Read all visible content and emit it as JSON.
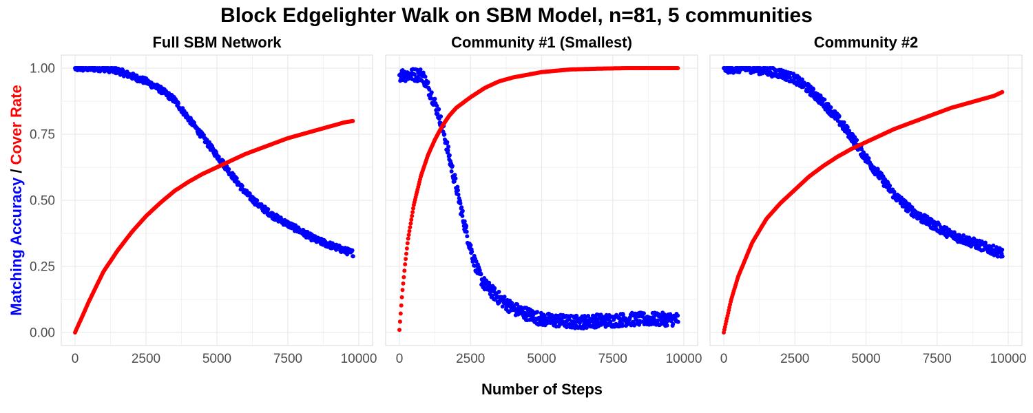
{
  "title": "Block Edgelighter Walk on SBM Model, n=81, 5 communities",
  "xlabel": "Number of Steps",
  "ylabel": {
    "part1": "Matching Accuracy",
    "sep": " / ",
    "part2": "Cover Rate"
  },
  "colors": {
    "accuracy": "#0000ff",
    "cover": "#ff0000",
    "panel_bg": "#ffffff",
    "grid": "#ebebeb",
    "border": "#d9d9d9"
  },
  "chart_data": [
    {
      "type": "scatter",
      "title": "Full SBM Network",
      "xlim": [
        0,
        10000
      ],
      "ylim": [
        0,
        1
      ],
      "x_ticks": [
        0,
        2500,
        5000,
        7500,
        10000
      ],
      "x_tick_labels": [
        "0",
        "2500",
        "5000",
        "7500",
        "10000"
      ],
      "y_ticks": [
        0,
        0.25,
        0.5,
        0.75,
        1.0
      ],
      "y_tick_labels": [
        "0.00",
        "0.25",
        "0.50",
        "0.75",
        "1.00"
      ],
      "series": [
        {
          "name": "Matching Accuracy",
          "color": "#0000ff",
          "x": [
            0,
            1000,
            1500,
            2000,
            2500,
            3000,
            3500,
            4000,
            4500,
            5000,
            5500,
            6000,
            6500,
            7000,
            7500,
            8000,
            8500,
            9000,
            9500,
            9800
          ],
          "y": [
            1.0,
            1.0,
            0.99,
            0.97,
            0.95,
            0.92,
            0.88,
            0.81,
            0.74,
            0.67,
            0.6,
            0.53,
            0.48,
            0.44,
            0.41,
            0.38,
            0.35,
            0.33,
            0.31,
            0.3
          ],
          "noise": 0.012
        },
        {
          "name": "Cover Rate",
          "color": "#ff0000",
          "x": [
            0,
            250,
            500,
            1000,
            1500,
            2000,
            2500,
            3000,
            3500,
            4000,
            4500,
            5000,
            5500,
            6000,
            6500,
            7000,
            7500,
            8000,
            8500,
            9000,
            9500,
            9800
          ],
          "y": [
            0.0,
            0.06,
            0.12,
            0.23,
            0.31,
            0.38,
            0.44,
            0.49,
            0.535,
            0.57,
            0.6,
            0.625,
            0.65,
            0.675,
            0.695,
            0.715,
            0.735,
            0.75,
            0.765,
            0.78,
            0.795,
            0.8
          ],
          "noise": 0
        }
      ]
    },
    {
      "type": "scatter",
      "title": "Community #1 (Smallest)",
      "xlim": [
        0,
        10000
      ],
      "ylim": [
        0,
        1
      ],
      "x_ticks": [
        0,
        2500,
        5000,
        7500,
        10000
      ],
      "x_tick_labels": [
        "0",
        "2500",
        "5000",
        "7500",
        "10000"
      ],
      "y_ticks": [
        0,
        0.25,
        0.5,
        0.75,
        1.0
      ],
      "y_tick_labels": [
        "0.00",
        "0.25",
        "0.50",
        "0.75",
        "1.00"
      ],
      "series": [
        {
          "name": "Matching Accuracy",
          "color": "#0000ff",
          "x": [
            0,
            800,
            1000,
            1200,
            1400,
            1600,
            1800,
            2000,
            2200,
            2400,
            2600,
            2800,
            3000,
            3500,
            4000,
            4500,
            5000,
            5500,
            6000,
            6500,
            7000,
            7500,
            8000,
            8500,
            9000,
            9500,
            9800
          ],
          "y": [
            0.975,
            0.975,
            0.93,
            0.88,
            0.82,
            0.74,
            0.64,
            0.55,
            0.45,
            0.36,
            0.28,
            0.22,
            0.18,
            0.13,
            0.09,
            0.07,
            0.05,
            0.045,
            0.04,
            0.04,
            0.045,
            0.045,
            0.05,
            0.05,
            0.05,
            0.05,
            0.05
          ],
          "noise": 0.025
        },
        {
          "name": "Cover Rate",
          "color": "#ff0000",
          "x": [
            0,
            50,
            100,
            200,
            300,
            500,
            750,
            1000,
            1250,
            1500,
            1750,
            2000,
            2500,
            3000,
            3500,
            4000,
            4500,
            5000,
            5500,
            6000,
            7000,
            8000,
            9000,
            9800
          ],
          "y": [
            0.01,
            0.08,
            0.15,
            0.26,
            0.35,
            0.48,
            0.59,
            0.67,
            0.73,
            0.78,
            0.82,
            0.85,
            0.89,
            0.925,
            0.95,
            0.965,
            0.975,
            0.985,
            0.99,
            0.995,
            0.998,
            1.0,
            1.0,
            1.0
          ],
          "noise": 0
        }
      ]
    },
    {
      "type": "scatter",
      "title": "Community #2",
      "xlim": [
        0,
        10000
      ],
      "ylim": [
        0,
        1
      ],
      "x_ticks": [
        0,
        2500,
        5000,
        7500,
        10000
      ],
      "x_tick_labels": [
        "0",
        "2500",
        "5000",
        "7500",
        "10000"
      ],
      "y_ticks": [
        0,
        0.25,
        0.5,
        0.75,
        1.0
      ],
      "y_tick_labels": [
        "0.00",
        "0.25",
        "0.50",
        "0.75",
        "1.00"
      ],
      "series": [
        {
          "name": "Matching Accuracy",
          "color": "#0000ff",
          "x": [
            0,
            1000,
            1500,
            2000,
            2500,
            3000,
            3500,
            4000,
            4500,
            5000,
            5500,
            6000,
            6500,
            7000,
            7500,
            8000,
            8500,
            9000,
            9500,
            9800
          ],
          "y": [
            1.0,
            1.0,
            0.99,
            0.98,
            0.96,
            0.92,
            0.87,
            0.81,
            0.74,
            0.66,
            0.59,
            0.52,
            0.47,
            0.43,
            0.4,
            0.37,
            0.35,
            0.33,
            0.31,
            0.3
          ],
          "noise": 0.018
        },
        {
          "name": "Cover Rate",
          "color": "#ff0000",
          "x": [
            0,
            250,
            500,
            1000,
            1500,
            2000,
            2500,
            3000,
            3500,
            4000,
            4500,
            5000,
            5500,
            6000,
            6500,
            7000,
            7500,
            8000,
            8500,
            9000,
            9500,
            9800
          ],
          "y": [
            0.0,
            0.12,
            0.21,
            0.34,
            0.43,
            0.49,
            0.54,
            0.59,
            0.63,
            0.665,
            0.695,
            0.72,
            0.745,
            0.77,
            0.79,
            0.81,
            0.83,
            0.85,
            0.865,
            0.88,
            0.895,
            0.91
          ],
          "noise": 0
        }
      ]
    }
  ]
}
